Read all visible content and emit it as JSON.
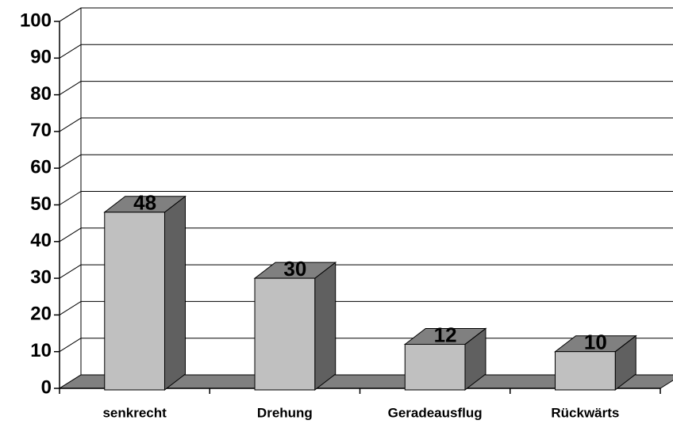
{
  "chart_data": {
    "type": "bar3d",
    "categories": [
      "senkrecht",
      "Drehung",
      "Geradeausflug",
      "Rückwärts"
    ],
    "values": [
      48,
      30,
      12,
      10
    ],
    "ylim": [
      0,
      100
    ],
    "yticks": [
      0,
      10,
      20,
      30,
      40,
      50,
      60,
      70,
      80,
      90,
      100
    ],
    "grid": true,
    "color": "#c0c0c0"
  }
}
